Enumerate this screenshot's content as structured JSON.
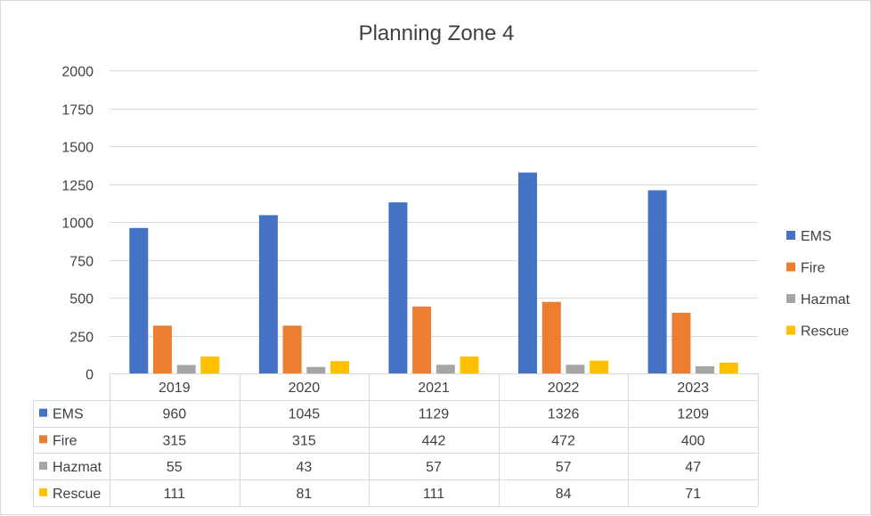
{
  "chart_data": {
    "type": "bar",
    "title": "Planning Zone 4",
    "categories": [
      "2019",
      "2020",
      "2021",
      "2022",
      "2023"
    ],
    "series": [
      {
        "name": "EMS",
        "color": "#4472C4",
        "values": [
          960,
          1045,
          1129,
          1326,
          1209
        ]
      },
      {
        "name": "Fire",
        "color": "#ED7D31",
        "values": [
          315,
          315,
          442,
          472,
          400
        ]
      },
      {
        "name": "Hazmat",
        "color": "#A5A5A5",
        "values": [
          55,
          43,
          57,
          57,
          47
        ]
      },
      {
        "name": "Rescue",
        "color": "#FFC000",
        "values": [
          111,
          81,
          111,
          84,
          71
        ]
      }
    ],
    "ylim": [
      0,
      2000
    ],
    "yticks": [
      0,
      250,
      500,
      750,
      1000,
      1250,
      1500,
      1750,
      2000
    ],
    "xlabel": "",
    "ylabel": "",
    "grid": true,
    "legend": "right",
    "data_table": true
  }
}
